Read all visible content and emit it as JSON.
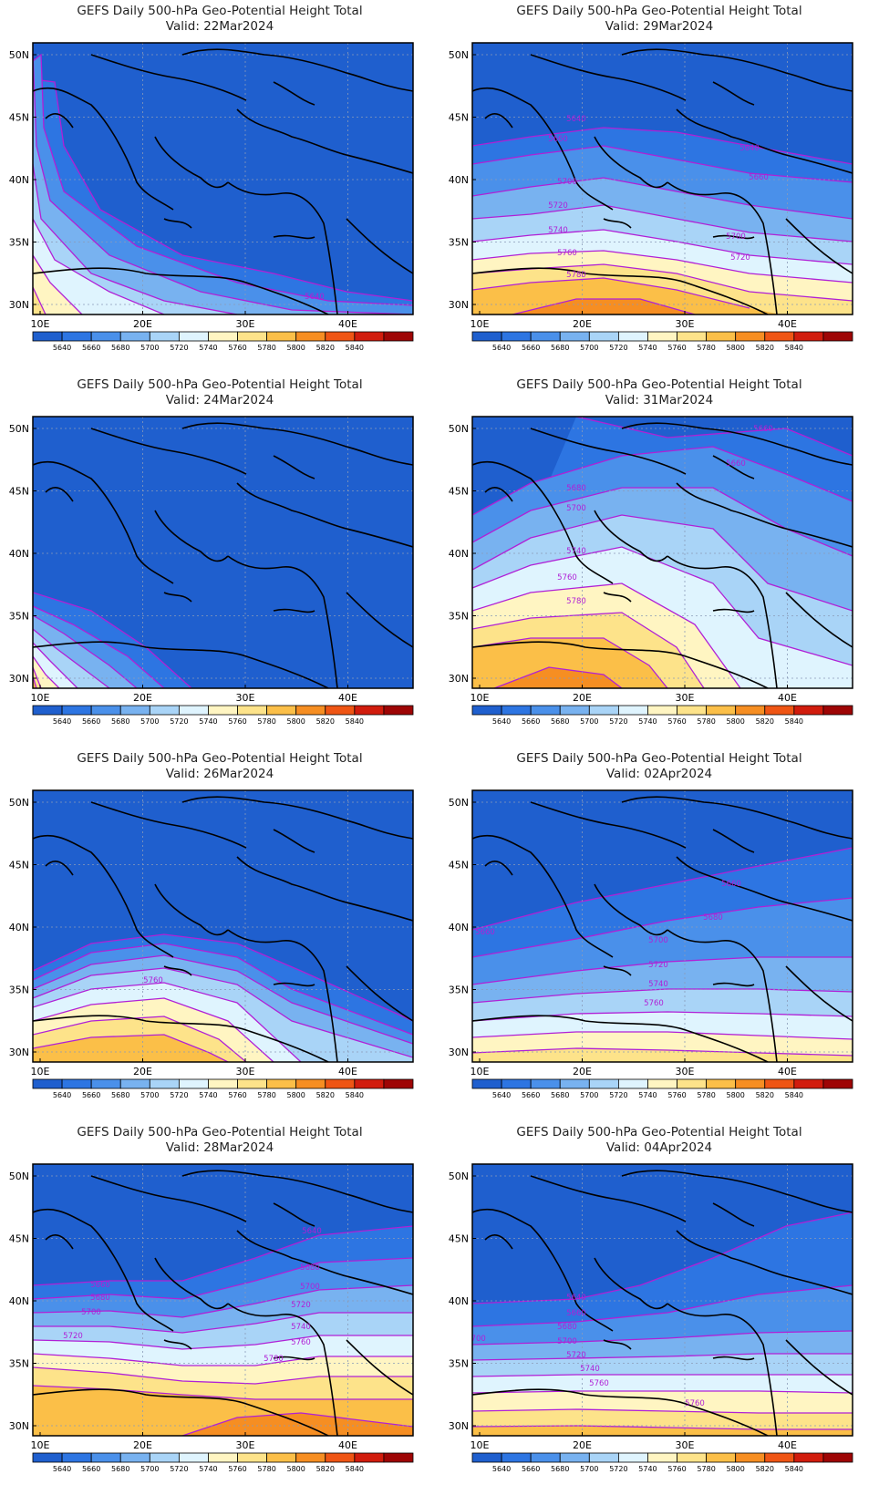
{
  "panel_title": "GEFS Daily 500-hPa Geo-Potential Height Total",
  "valid_prefix": "Valid:",
  "lat_labels": [
    "50N",
    "45N",
    "40N",
    "35N",
    "30N"
  ],
  "lon_labels": [
    "10E",
    "20E",
    "30E",
    "40E"
  ],
  "colorbar_levels": [
    "5640",
    "5660",
    "5680",
    "5700",
    "5720",
    "5740",
    "5760",
    "5780",
    "5800",
    "5820",
    "5840"
  ],
  "colorbar_colors": [
    "#1f5fce",
    "#2d75e2",
    "#4a90ea",
    "#78b2f0",
    "#a9d4f7",
    "#dff4fe",
    "#fff5c2",
    "#fde38a",
    "#fbbf48",
    "#f68e22",
    "#ef5514",
    "#d11c0d",
    "#9e0505"
  ],
  "contour_color": "#b020d6",
  "panels": [
    {
      "valid": "22Mar2024",
      "contour_labels": [
        "5640"
      ]
    },
    {
      "valid": "29Mar2024",
      "contour_labels": [
        "5640",
        "5660",
        "5640",
        "5660",
        "5700",
        "5720",
        "5740",
        "5700",
        "5760",
        "5720",
        "5780"
      ]
    },
    {
      "valid": "24Mar2024",
      "contour_labels": []
    },
    {
      "valid": "31Mar2024",
      "contour_labels": [
        "5660",
        "5660",
        "5680",
        "5700",
        "5740",
        "5760",
        "5780"
      ]
    },
    {
      "valid": "26Mar2024",
      "contour_labels": [
        "5760"
      ]
    },
    {
      "valid": "02Apr2024",
      "contour_labels": [
        "5660",
        "5680",
        "5660",
        "5700",
        "5720",
        "5740",
        "5760"
      ]
    },
    {
      "valid": "28Mar2024",
      "contour_labels": [
        "5640",
        "5680",
        "5660",
        "5700",
        "5680",
        "5720",
        "5700",
        "5740",
        "5720",
        "5760",
        "5780"
      ]
    },
    {
      "valid": "04Apr2024",
      "contour_labels": [
        "5640",
        "5660",
        "5680",
        "5700",
        "5700",
        "5720",
        "5740",
        "5760",
        "5760"
      ]
    }
  ]
}
